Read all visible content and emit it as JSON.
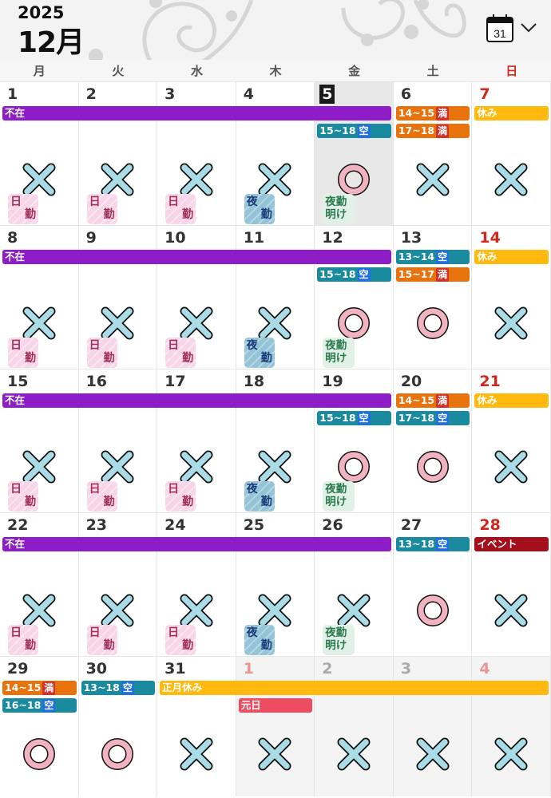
{
  "header": {
    "year": "2025",
    "month": "12月",
    "calendar_icon_day": "31"
  },
  "weekdays": [
    "月",
    "火",
    "水",
    "木",
    "金",
    "土",
    "日"
  ],
  "colors": {
    "absent": "#8e1cc7",
    "full": "#e8730c",
    "vacant": "#1a8a9e",
    "holiday": "#ffb90f",
    "event": "#a3101c",
    "newyear": "#ee4c60",
    "tag_full": "#d2302a",
    "tag_vacant": "#1f6fe0"
  },
  "badges": {
    "day": [
      "日",
      "勤"
    ],
    "night": [
      "夜",
      "勤"
    ],
    "after": [
      "夜勤",
      "明け"
    ]
  },
  "weeks": [
    {
      "days": [
        {
          "n": "1",
          "mark": "x",
          "badge": "day"
        },
        {
          "n": "2",
          "mark": "x",
          "badge": "day"
        },
        {
          "n": "3",
          "mark": "x",
          "badge": "day"
        },
        {
          "n": "4",
          "mark": "x",
          "badge": "night"
        },
        {
          "n": "5",
          "mark": "o",
          "badge": "after",
          "today": true
        },
        {
          "n": "6",
          "mark": "x"
        },
        {
          "n": "7",
          "mark": "x",
          "sun": true
        }
      ],
      "events": [
        {
          "label": "不在",
          "type": "absent",
          "from": 0,
          "to": 4,
          "lane": 0
        },
        {
          "label": "15~18",
          "tag": "空",
          "type": "vacant",
          "from": 4,
          "to": 4,
          "lane": 1
        },
        {
          "label": "14~15",
          "tag": "満",
          "type": "full",
          "from": 5,
          "to": 5,
          "lane": 0
        },
        {
          "label": "17~18",
          "tag": "満",
          "type": "full",
          "from": 5,
          "to": 5,
          "lane": 1
        },
        {
          "label": "休み",
          "type": "holiday",
          "from": 6,
          "to": 6,
          "lane": 0
        }
      ]
    },
    {
      "days": [
        {
          "n": "8",
          "mark": "x",
          "badge": "day"
        },
        {
          "n": "9",
          "mark": "x",
          "badge": "day"
        },
        {
          "n": "10",
          "mark": "x",
          "badge": "day"
        },
        {
          "n": "11",
          "mark": "x",
          "badge": "night"
        },
        {
          "n": "12",
          "mark": "o",
          "badge": "after"
        },
        {
          "n": "13",
          "mark": "o"
        },
        {
          "n": "14",
          "mark": "x",
          "sun": true
        }
      ],
      "events": [
        {
          "label": "不在",
          "type": "absent",
          "from": 0,
          "to": 4,
          "lane": 0
        },
        {
          "label": "15~18",
          "tag": "空",
          "type": "vacant",
          "from": 4,
          "to": 4,
          "lane": 1
        },
        {
          "label": "13~14",
          "tag": "空",
          "type": "vacant",
          "from": 5,
          "to": 5,
          "lane": 0
        },
        {
          "label": "15~17",
          "tag": "満",
          "type": "full",
          "from": 5,
          "to": 5,
          "lane": 1
        },
        {
          "label": "休み",
          "type": "holiday",
          "from": 6,
          "to": 6,
          "lane": 0
        }
      ]
    },
    {
      "days": [
        {
          "n": "15",
          "mark": "x",
          "badge": "day"
        },
        {
          "n": "16",
          "mark": "x",
          "badge": "day"
        },
        {
          "n": "17",
          "mark": "x",
          "badge": "day"
        },
        {
          "n": "18",
          "mark": "x",
          "badge": "night"
        },
        {
          "n": "19",
          "mark": "o",
          "badge": "after"
        },
        {
          "n": "20",
          "mark": "o"
        },
        {
          "n": "21",
          "mark": "x",
          "sun": true
        }
      ],
      "events": [
        {
          "label": "不在",
          "type": "absent",
          "from": 0,
          "to": 4,
          "lane": 0
        },
        {
          "label": "15~18",
          "tag": "空",
          "type": "vacant",
          "from": 4,
          "to": 4,
          "lane": 1
        },
        {
          "label": "14~15",
          "tag": "満",
          "type": "full",
          "from": 5,
          "to": 5,
          "lane": 0
        },
        {
          "label": "17~18",
          "tag": "空",
          "type": "vacant",
          "from": 5,
          "to": 5,
          "lane": 1
        },
        {
          "label": "休み",
          "type": "holiday",
          "from": 6,
          "to": 6,
          "lane": 0
        }
      ]
    },
    {
      "days": [
        {
          "n": "22",
          "mark": "x",
          "badge": "day"
        },
        {
          "n": "23",
          "mark": "x",
          "badge": "day"
        },
        {
          "n": "24",
          "mark": "x",
          "badge": "day"
        },
        {
          "n": "25",
          "mark": "x",
          "badge": "night"
        },
        {
          "n": "26",
          "mark": "x",
          "badge": "after"
        },
        {
          "n": "27",
          "mark": "o"
        },
        {
          "n": "28",
          "mark": "x",
          "sun": true
        }
      ],
      "events": [
        {
          "label": "不在",
          "type": "absent",
          "from": 0,
          "to": 4,
          "lane": 0
        },
        {
          "label": "13~18",
          "tag": "空",
          "type": "vacant",
          "from": 5,
          "to": 5,
          "lane": 0
        },
        {
          "label": "イベント",
          "type": "event",
          "from": 6,
          "to": 6,
          "lane": 0
        }
      ]
    },
    {
      "days": [
        {
          "n": "29",
          "mark": "o"
        },
        {
          "n": "30",
          "mark": "o"
        },
        {
          "n": "31",
          "mark": "x"
        },
        {
          "n": "1",
          "mark": "x",
          "other": true,
          "tone": "lred"
        },
        {
          "n": "2",
          "mark": "x",
          "other": true,
          "tone": "grey"
        },
        {
          "n": "3",
          "mark": "x",
          "other": true,
          "tone": "grey"
        },
        {
          "n": "4",
          "mark": "x",
          "other": true,
          "tone": "lred"
        }
      ],
      "events": [
        {
          "label": "14~15",
          "tag": "満",
          "type": "full",
          "from": 0,
          "to": 0,
          "lane": 0
        },
        {
          "label": "16~18",
          "tag": "空",
          "type": "vacant",
          "from": 0,
          "to": 0,
          "lane": 1
        },
        {
          "label": "13~18",
          "tag": "空",
          "type": "vacant",
          "from": 1,
          "to": 1,
          "lane": 0
        },
        {
          "label": "正月休み",
          "type": "holiday",
          "from": 2,
          "to": 6,
          "lane": 0
        },
        {
          "label": "元日",
          "type": "newyear",
          "from": 3,
          "to": 3,
          "lane": 1
        }
      ]
    }
  ]
}
